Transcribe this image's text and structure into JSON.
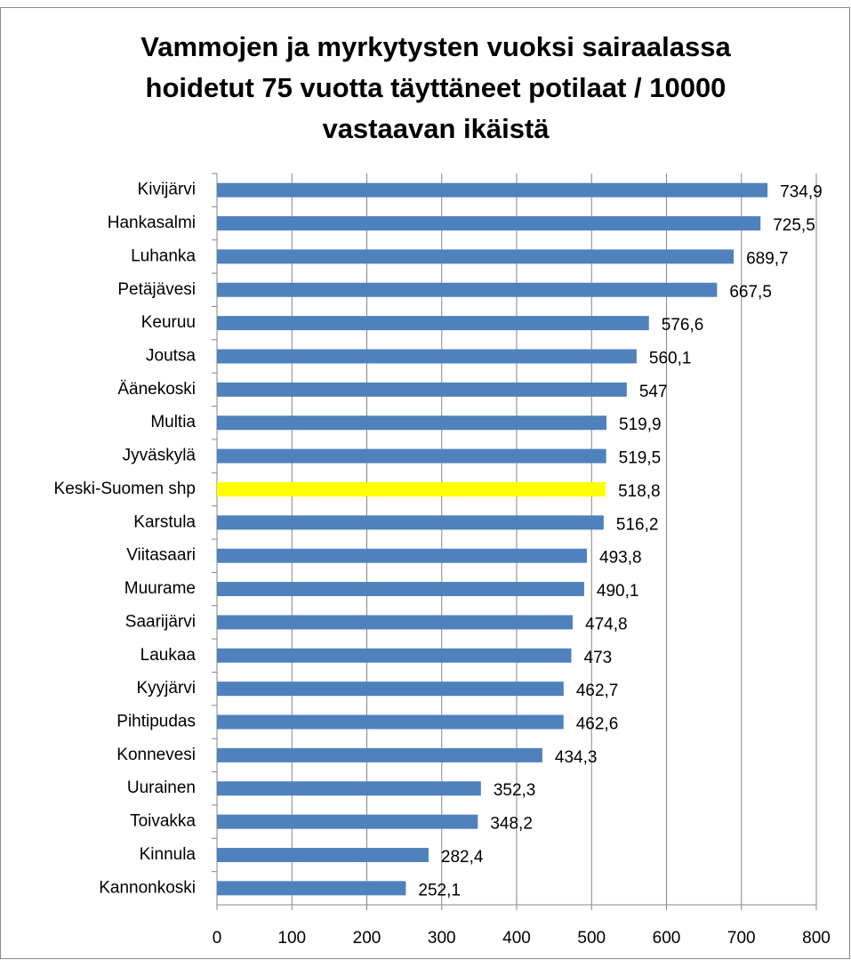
{
  "chart_data": {
    "type": "barh",
    "title": "Vammojen ja myrkytysten vuoksi sairaalassa hoidetut 75 vuotta täyttäneet potilaat / 10000 vastaavan ikäistä",
    "categories": [
      "Kivijärvi",
      "Hankasalmi",
      "Luhanka",
      "Petäjävesi",
      "Keuruu",
      "Joutsa",
      "Äänekoski",
      "Multia",
      "Jyväskylä",
      "Keski-Suomen shp",
      "Karstula",
      "Viitasaari",
      "Muurame",
      "Saarijärvi",
      "Laukaa",
      "Kyyjärvi",
      "Pihtipudas",
      "Konnevesi",
      "Uurainen",
      "Toivakka",
      "Kinnula",
      "Kannonkoski"
    ],
    "values": [
      734.9,
      725.5,
      689.7,
      667.5,
      576.6,
      560.1,
      547,
      519.9,
      519.5,
      518.8,
      516.2,
      493.8,
      490.1,
      474.8,
      473,
      462.7,
      462.6,
      434.3,
      352.3,
      348.2,
      282.4,
      252.1
    ],
    "value_labels": [
      "734,9",
      "725,5",
      "689,7",
      "667,5",
      "576,6",
      "560,1",
      "547",
      "519,9",
      "519,5",
      "518,8",
      "516,2",
      "493,8",
      "490,1",
      "474,8",
      "473",
      "462,7",
      "462,6",
      "434,3",
      "352,3",
      "348,2",
      "282,4",
      "252,1"
    ],
    "colors": [
      "#4f81bd",
      "#4f81bd",
      "#4f81bd",
      "#4f81bd",
      "#4f81bd",
      "#4f81bd",
      "#4f81bd",
      "#4f81bd",
      "#4f81bd",
      "#ffff00",
      "#4f81bd",
      "#4f81bd",
      "#4f81bd",
      "#4f81bd",
      "#4f81bd",
      "#4f81bd",
      "#4f81bd",
      "#4f81bd",
      "#4f81bd",
      "#4f81bd",
      "#4f81bd",
      "#4f81bd"
    ],
    "xlim": [
      0,
      800
    ],
    "xticks": [
      0,
      100,
      200,
      300,
      400,
      500,
      600,
      700,
      800
    ],
    "grid": true
  }
}
